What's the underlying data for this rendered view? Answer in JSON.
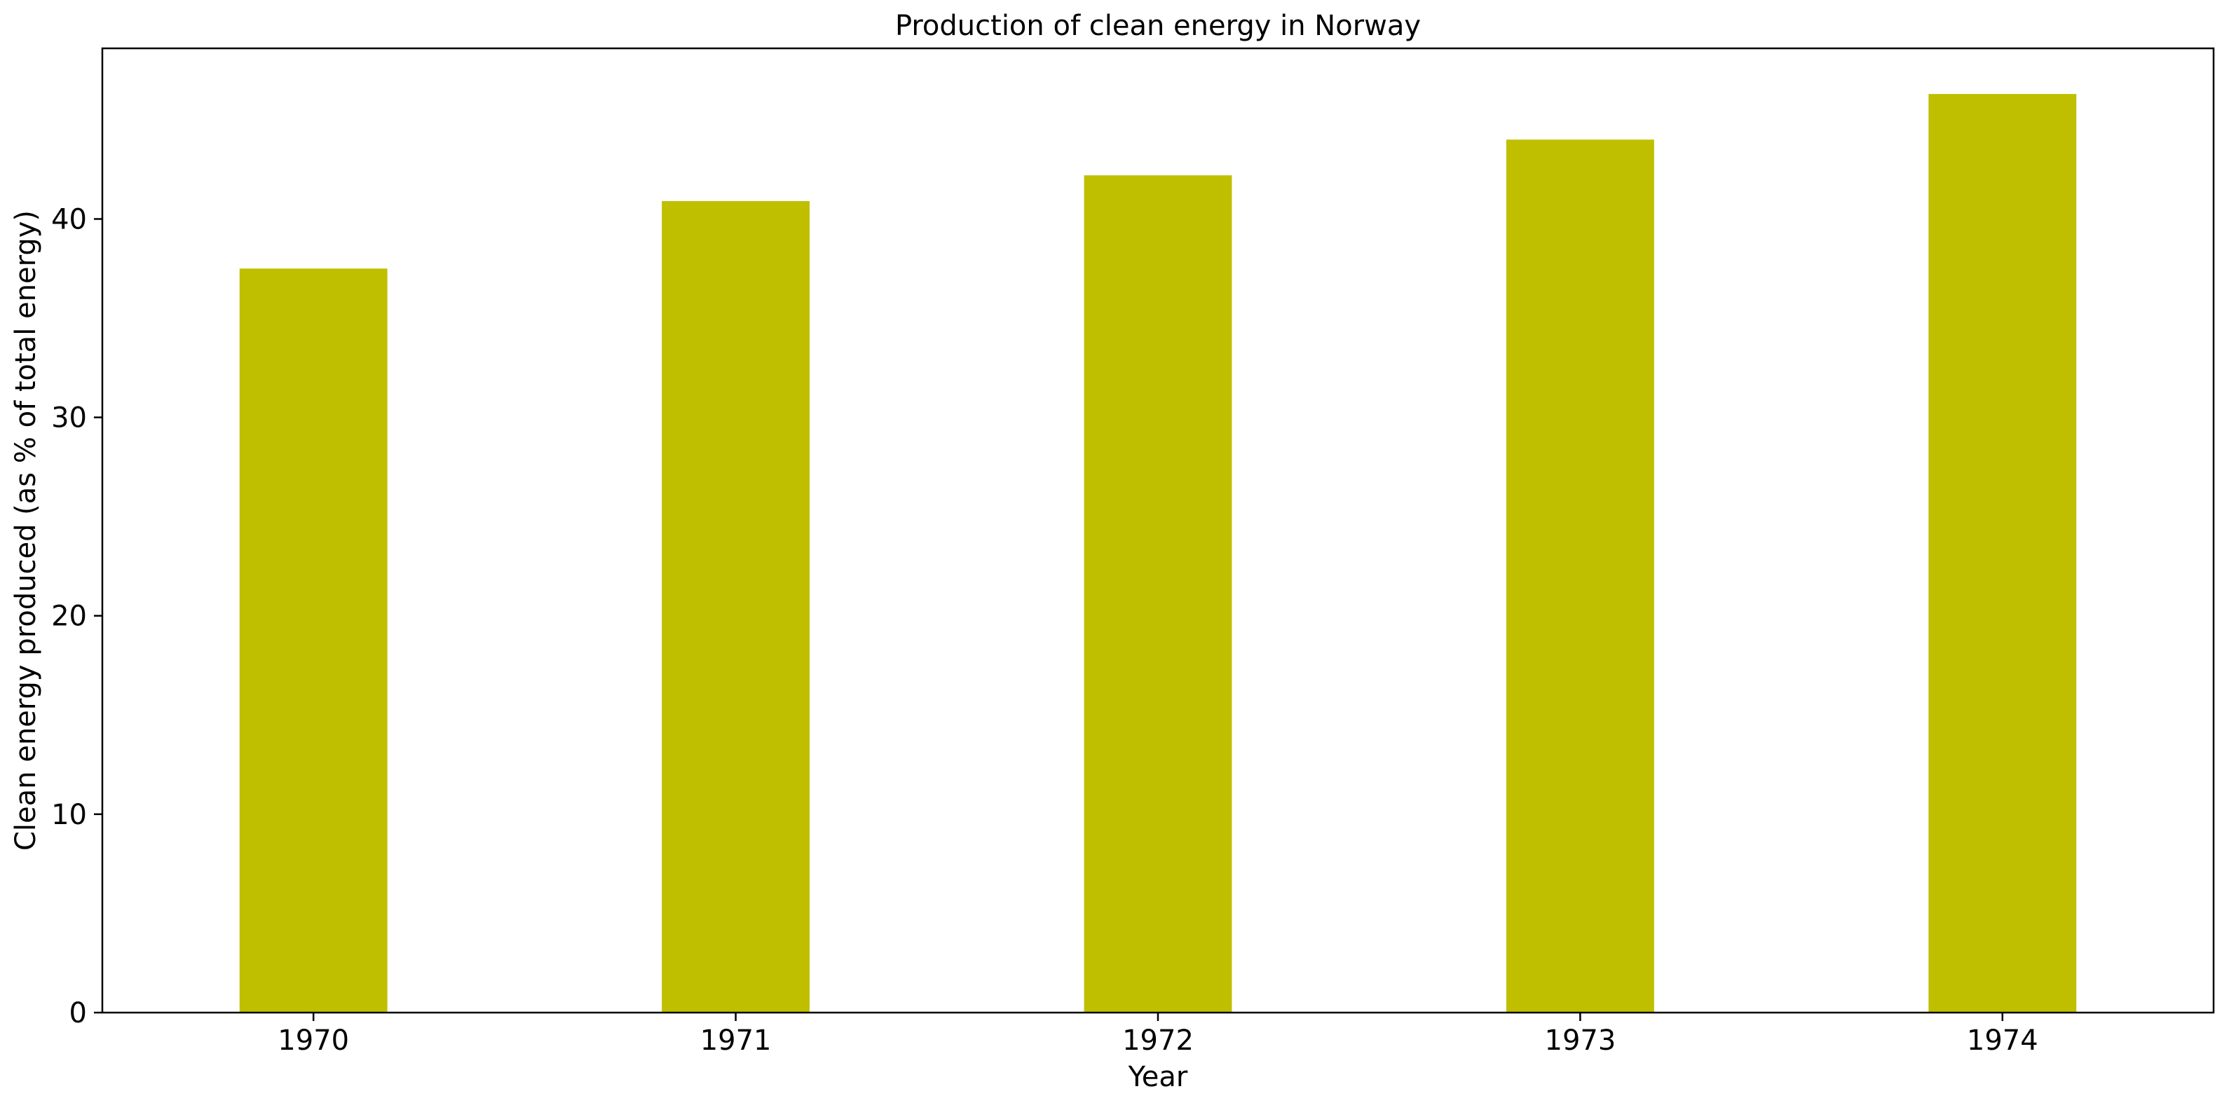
{
  "chart_data": {
    "type": "bar",
    "title": "Production of clean energy in Norway",
    "xlabel": "Year",
    "ylabel": "Clean energy produced (as % of total energy)",
    "categories": [
      "1970",
      "1971",
      "1972",
      "1973",
      "1974"
    ],
    "values": [
      37.5,
      40.9,
      42.2,
      44.0,
      46.3
    ],
    "ylim": [
      0,
      48.6
    ],
    "yticks": [
      0,
      10,
      20,
      30,
      40
    ],
    "grid": false,
    "legend": "none",
    "bar_color": "#bfbf00"
  }
}
